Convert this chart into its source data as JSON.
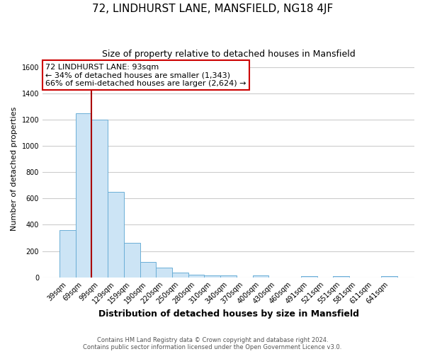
{
  "title": "72, LINDHURST LANE, MANSFIELD, NG18 4JF",
  "subtitle": "Size of property relative to detached houses in Mansfield",
  "xlabel": "Distribution of detached houses by size in Mansfield",
  "ylabel": "Number of detached properties",
  "bar_labels": [
    "39sqm",
    "69sqm",
    "99sqm",
    "129sqm",
    "159sqm",
    "190sqm",
    "220sqm",
    "250sqm",
    "280sqm",
    "310sqm",
    "340sqm",
    "370sqm",
    "400sqm",
    "430sqm",
    "460sqm",
    "491sqm",
    "521sqm",
    "551sqm",
    "581sqm",
    "611sqm",
    "641sqm"
  ],
  "bar_values": [
    360,
    1250,
    1200,
    650,
    260,
    115,
    75,
    38,
    20,
    13,
    13,
    0,
    12,
    0,
    0,
    10,
    0,
    10,
    0,
    0,
    10
  ],
  "bar_color": "#cce4f5",
  "bar_edge_color": "#6baed6",
  "vline_position": 2.0,
  "vline_color": "#aa0000",
  "annotation_title": "72 LINDHURST LANE: 93sqm",
  "annotation_line1": "← 34% of detached houses are smaller (1,343)",
  "annotation_line2": "66% of semi-detached houses are larger (2,624) →",
  "annotation_box_facecolor": "#ffffff",
  "annotation_box_edgecolor": "#cc0000",
  "ylim": [
    0,
    1650
  ],
  "yticks": [
    0,
    200,
    400,
    600,
    800,
    1000,
    1200,
    1400,
    1600
  ],
  "footer1": "Contains HM Land Registry data © Crown copyright and database right 2024.",
  "footer2": "Contains public sector information licensed under the Open Government Licence v3.0.",
  "background_color": "#ffffff",
  "plot_bg_color": "#ffffff",
  "grid_color": "#cccccc"
}
